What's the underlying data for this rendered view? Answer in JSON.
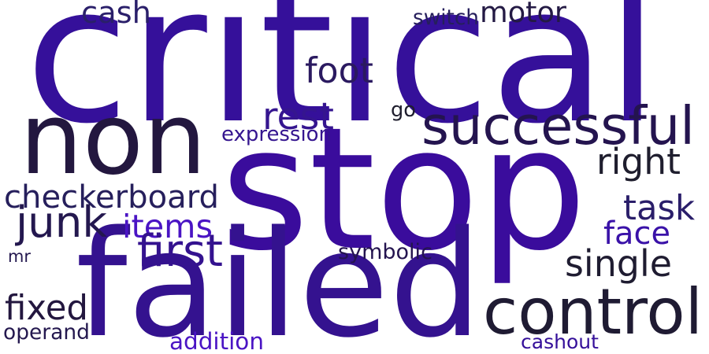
{
  "word_cloud": {
    "words": [
      {
        "text": "critical",
        "color": "#35109a"
      },
      {
        "text": "stop",
        "color": "#3a0c9c"
      },
      {
        "text": "non",
        "color": "#23173f"
      },
      {
        "text": "failed",
        "color": "#34128f"
      },
      {
        "text": "control",
        "color": "#1f1b33"
      },
      {
        "text": "successful",
        "color": "#24144f"
      },
      {
        "text": "checkerboard",
        "color": "#261f5c"
      },
      {
        "text": "foot",
        "color": "#2b1a60"
      },
      {
        "text": "motor",
        "color": "#241a44"
      },
      {
        "text": "cash",
        "color": "#2a1f6a"
      },
      {
        "text": "rest",
        "color": "#35158f"
      },
      {
        "text": "right",
        "color": "#1f1e2e"
      },
      {
        "text": "task",
        "color": "#2a1e6a"
      },
      {
        "text": "face",
        "color": "#3a12a8"
      },
      {
        "text": "single",
        "color": "#1f1c31"
      },
      {
        "text": "junk",
        "color": "#24184f"
      },
      {
        "text": "items",
        "color": "#4a14c4"
      },
      {
        "text": "first",
        "color": "#34128f"
      },
      {
        "text": "fixed",
        "color": "#23173f"
      },
      {
        "text": "operand",
        "color": "#24184f"
      },
      {
        "text": "addition",
        "color": "#4a14c4"
      },
      {
        "text": "cashout",
        "color": "#35109a"
      },
      {
        "text": "symbolic",
        "color": "#24144f"
      },
      {
        "text": "expression",
        "color": "#35158f"
      },
      {
        "text": "switch",
        "color": "#261f5c"
      },
      {
        "text": "go",
        "color": "#1f1e2e"
      },
      {
        "text": "mr",
        "color": "#24184f"
      }
    ]
  }
}
